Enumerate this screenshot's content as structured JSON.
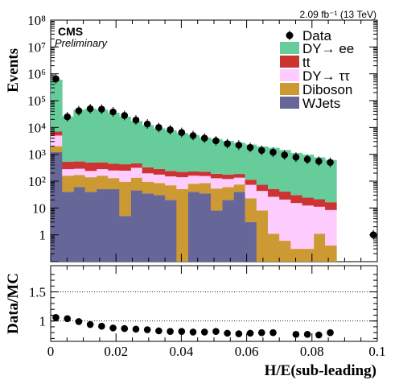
{
  "header": {
    "lumi": "2.09 fb⁻¹ (13 TeV)",
    "experiment": "CMS",
    "status": "Preliminary"
  },
  "chart_data": [
    {
      "type": "bar",
      "stacked": true,
      "log_y": true,
      "ylabel": "Events",
      "ylim": [
        0.1,
        100000000.0
      ],
      "xlim": [
        0,
        0.1
      ],
      "y_ticks": [
        "1",
        "10",
        "10²",
        "10³",
        "10⁴",
        "10⁵",
        "10⁶",
        "10⁷",
        "10⁸"
      ],
      "bin_width": 0.0035,
      "bins_start": 0.0,
      "legend": [
        {
          "label": "Data",
          "marker": "point",
          "color": "#000000"
        },
        {
          "label": "DY→ ee",
          "color": "#66cc99"
        },
        {
          "label": "tt",
          "color": "#cc3333"
        },
        {
          "label": "DY→ ττ",
          "color": "#ffccff"
        },
        {
          "label": "Diboson",
          "color": "#cc9933"
        },
        {
          "label": "WJets",
          "color": "#666699"
        }
      ],
      "series": [
        {
          "name": "WJets",
          "color": "#666699",
          "values": [
            1200,
            40,
            60,
            40,
            50,
            50,
            5,
            45,
            35,
            30,
            20,
            0.1,
            40,
            35,
            8,
            20,
            40,
            3,
            0.1,
            0.1,
            0.1,
            0.1,
            0.1,
            0.1,
            0.1
          ]
        },
        {
          "name": "Diboson",
          "color": "#cc9933",
          "values": [
            800,
            120,
            110,
            100,
            110,
            80,
            90,
            90,
            60,
            55,
            50,
            50,
            40,
            50,
            45,
            40,
            35,
            20,
            8,
            1,
            0.5,
            0.2,
            0.2,
            1,
            0.3
          ]
        },
        {
          "name": "DY→ ττ",
          "color": "#ffccff",
          "values": [
            3000,
            120,
            120,
            100,
            120,
            120,
            150,
            180,
            100,
            90,
            80,
            90,
            80,
            70,
            75,
            60,
            60,
            50,
            35,
            25,
            20,
            15,
            12,
            10,
            8
          ]
        },
        {
          "name": "tt",
          "color": "#cc3333",
          "values": [
            2000,
            250,
            250,
            250,
            220,
            200,
            180,
            150,
            130,
            110,
            90,
            80,
            70,
            70,
            60,
            55,
            50,
            40,
            30,
            25,
            20,
            15,
            12,
            10,
            8
          ]
        },
        {
          "name": "DY→ ee",
          "color": "#66cc99",
          "values": [
            600000,
            25000,
            45000,
            50000,
            45000,
            35000,
            25000,
            17000,
            12000,
            9000,
            7500,
            6000,
            5000,
            4000,
            3500,
            3000,
            2500,
            2200,
            1900,
            1700,
            1400,
            1100,
            950,
            750,
            600
          ]
        }
      ],
      "data_points": {
        "name": "Data",
        "x": [
          0.0016,
          0.0051,
          0.0086,
          0.0121,
          0.0156,
          0.0191,
          0.0226,
          0.0261,
          0.0296,
          0.0331,
          0.0366,
          0.0401,
          0.0436,
          0.0471,
          0.0506,
          0.0541,
          0.0576,
          0.0611,
          0.0646,
          0.0681,
          0.0716,
          0.0751,
          0.0786,
          0.0821,
          0.0856,
          0.0988
        ],
        "y": [
          650000,
          25000,
          42000,
          50000,
          48000,
          38000,
          28000,
          19000,
          13500,
          10000,
          8200,
          6500,
          5000,
          4000,
          3200,
          2500,
          2200,
          1800,
          1400,
          1200,
          950,
          780,
          650,
          550,
          500,
          1
        ]
      }
    },
    {
      "type": "scatter",
      "ylabel": "Data/MC",
      "xlabel": "H/E(sub-leading)",
      "xlim": [
        0,
        0.1
      ],
      "ylim": [
        0.65,
        1.95
      ],
      "y_ticks": [
        "1",
        "1.5"
      ],
      "x_ticks": [
        "0",
        "0.02",
        "0.04",
        "0.06",
        "0.08",
        "0.1"
      ],
      "reference_lines": [
        1.0,
        1.5
      ],
      "points": {
        "x": [
          0.0016,
          0.0051,
          0.0086,
          0.0121,
          0.0156,
          0.0191,
          0.0226,
          0.0261,
          0.0296,
          0.0331,
          0.0366,
          0.0401,
          0.0436,
          0.0471,
          0.0506,
          0.0541,
          0.0576,
          0.0611,
          0.0646,
          0.0681,
          0.0751,
          0.0786,
          0.0821,
          0.0856
        ],
        "y": [
          1.06,
          1.04,
          0.99,
          0.94,
          0.91,
          0.88,
          0.87,
          0.86,
          0.85,
          0.83,
          0.82,
          0.82,
          0.81,
          0.81,
          0.82,
          0.79,
          0.78,
          0.79,
          0.8,
          0.8,
          0.77,
          0.77,
          0.76,
          0.8
        ]
      }
    }
  ]
}
